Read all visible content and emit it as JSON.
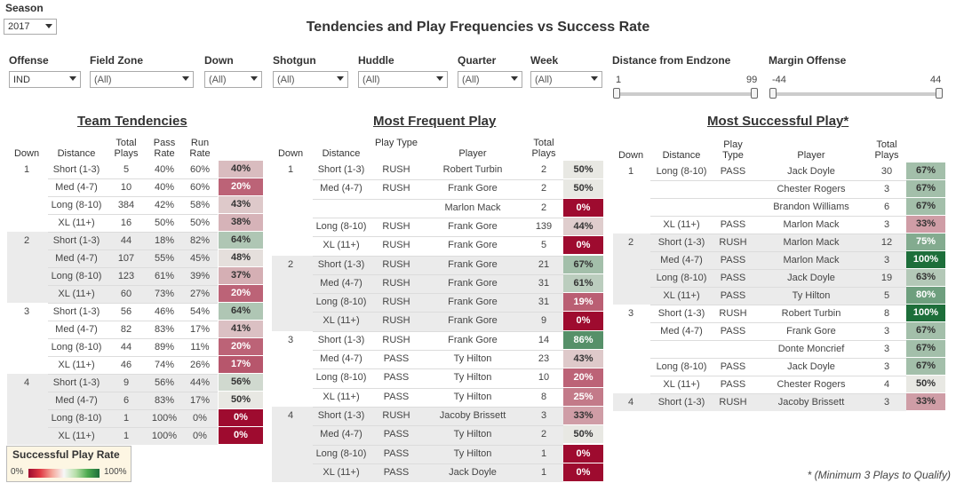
{
  "season": {
    "label": "Season",
    "value": "2017"
  },
  "title": "Tendencies and Play Frequencies vs Success Rate",
  "filters": [
    {
      "label": "Offense",
      "value": "IND"
    },
    {
      "label": "Field Zone",
      "value": "(All)"
    },
    {
      "label": "Down",
      "value": "(All)"
    },
    {
      "label": "Shotgun",
      "value": "(All)"
    },
    {
      "label": "Huddle",
      "value": "(All)"
    },
    {
      "label": "Quarter",
      "value": "(All)"
    },
    {
      "label": "Week",
      "value": "(All)"
    }
  ],
  "sliders": [
    {
      "label": "Distance from Endzone",
      "min": "1",
      "max": "99"
    },
    {
      "label": "Margin Offense",
      "min": "-44",
      "max": "44"
    }
  ],
  "colors": {
    "low": "#9e0b2f",
    "mid": "#e8e8e3",
    "high": "#1d6e3a"
  },
  "team_tendencies": {
    "title": "Team Tendencies",
    "headers": {
      "down": "Down",
      "distance": "Distance",
      "plays": "Total Plays",
      "pass": "Pass Rate",
      "run": "Run Rate"
    },
    "rows": [
      {
        "down": "1",
        "distance": "Short (1-3)",
        "plays": "5",
        "pass": "40%",
        "run": "60%",
        "rate": "40%",
        "v": 40
      },
      {
        "down": "",
        "distance": "Med (4-7)",
        "plays": "10",
        "pass": "40%",
        "run": "60%",
        "rate": "20%",
        "v": 20
      },
      {
        "down": "",
        "distance": "Long (8-10)",
        "plays": "384",
        "pass": "42%",
        "run": "58%",
        "rate": "43%",
        "v": 43
      },
      {
        "down": "",
        "distance": "XL (11+)",
        "plays": "16",
        "pass": "50%",
        "run": "50%",
        "rate": "38%",
        "v": 38
      },
      {
        "down": "2",
        "distance": "Short (1-3)",
        "plays": "44",
        "pass": "18%",
        "run": "82%",
        "rate": "64%",
        "v": 64
      },
      {
        "down": "",
        "distance": "Med (4-7)",
        "plays": "107",
        "pass": "55%",
        "run": "45%",
        "rate": "48%",
        "v": 48
      },
      {
        "down": "",
        "distance": "Long (8-10)",
        "plays": "123",
        "pass": "61%",
        "run": "39%",
        "rate": "37%",
        "v": 37
      },
      {
        "down": "",
        "distance": "XL (11+)",
        "plays": "60",
        "pass": "73%",
        "run": "27%",
        "rate": "20%",
        "v": 20
      },
      {
        "down": "3",
        "distance": "Short (1-3)",
        "plays": "56",
        "pass": "46%",
        "run": "54%",
        "rate": "64%",
        "v": 64
      },
      {
        "down": "",
        "distance": "Med (4-7)",
        "plays": "82",
        "pass": "83%",
        "run": "17%",
        "rate": "41%",
        "v": 41
      },
      {
        "down": "",
        "distance": "Long (8-10)",
        "plays": "44",
        "pass": "89%",
        "run": "11%",
        "rate": "20%",
        "v": 20
      },
      {
        "down": "",
        "distance": "XL (11+)",
        "plays": "46",
        "pass": "74%",
        "run": "26%",
        "rate": "17%",
        "v": 17
      },
      {
        "down": "4",
        "distance": "Short (1-3)",
        "plays": "9",
        "pass": "56%",
        "run": "44%",
        "rate": "56%",
        "v": 56
      },
      {
        "down": "",
        "distance": "Med (4-7)",
        "plays": "6",
        "pass": "83%",
        "run": "17%",
        "rate": "50%",
        "v": 50
      },
      {
        "down": "",
        "distance": "Long (8-10)",
        "plays": "1",
        "pass": "100%",
        "run": "0%",
        "rate": "0%",
        "v": 0
      },
      {
        "down": "",
        "distance": "XL (11+)",
        "plays": "1",
        "pass": "100%",
        "run": "0%",
        "rate": "0%",
        "v": 0
      }
    ]
  },
  "most_frequent": {
    "title": "Most Frequent Play",
    "headers": {
      "down": "Down",
      "distance": "Distance",
      "type": "Play Type",
      "player": "Player",
      "plays": "Total Plays"
    },
    "rows": [
      {
        "down": "1",
        "distance": "Short (1-3)",
        "type": "RUSH",
        "player": "Robert Turbin",
        "plays": "2",
        "rate": "50%",
        "v": 50
      },
      {
        "down": "",
        "distance": "Med (4-7)",
        "type": "RUSH",
        "player": "Frank Gore",
        "plays": "2",
        "rate": "50%",
        "v": 50
      },
      {
        "down": "",
        "distance": "",
        "type": "",
        "player": "Marlon Mack",
        "plays": "2",
        "rate": "0%",
        "v": 0
      },
      {
        "down": "",
        "distance": "Long (8-10)",
        "type": "RUSH",
        "player": "Frank Gore",
        "plays": "139",
        "rate": "44%",
        "v": 44
      },
      {
        "down": "",
        "distance": "XL (11+)",
        "type": "RUSH",
        "player": "Frank Gore",
        "plays": "5",
        "rate": "0%",
        "v": 0
      },
      {
        "down": "2",
        "distance": "Short (1-3)",
        "type": "RUSH",
        "player": "Frank Gore",
        "plays": "21",
        "rate": "67%",
        "v": 67
      },
      {
        "down": "",
        "distance": "Med (4-7)",
        "type": "RUSH",
        "player": "Frank Gore",
        "plays": "31",
        "rate": "61%",
        "v": 61
      },
      {
        "down": "",
        "distance": "Long (8-10)",
        "type": "RUSH",
        "player": "Frank Gore",
        "plays": "31",
        "rate": "19%",
        "v": 19
      },
      {
        "down": "",
        "distance": "XL (11+)",
        "type": "RUSH",
        "player": "Frank Gore",
        "plays": "9",
        "rate": "0%",
        "v": 0
      },
      {
        "down": "3",
        "distance": "Short (1-3)",
        "type": "RUSH",
        "player": "Frank Gore",
        "plays": "14",
        "rate": "86%",
        "v": 86
      },
      {
        "down": "",
        "distance": "Med (4-7)",
        "type": "PASS",
        "player": "Ty Hilton",
        "plays": "23",
        "rate": "43%",
        "v": 43
      },
      {
        "down": "",
        "distance": "Long (8-10)",
        "type": "PASS",
        "player": "Ty Hilton",
        "plays": "10",
        "rate": "20%",
        "v": 20
      },
      {
        "down": "",
        "distance": "XL (11+)",
        "type": "PASS",
        "player": "Ty Hilton",
        "plays": "8",
        "rate": "25%",
        "v": 25
      },
      {
        "down": "4",
        "distance": "Short (1-3)",
        "type": "RUSH",
        "player": "Jacoby Brissett",
        "plays": "3",
        "rate": "33%",
        "v": 33
      },
      {
        "down": "",
        "distance": "Med (4-7)",
        "type": "PASS",
        "player": "Ty Hilton",
        "plays": "2",
        "rate": "50%",
        "v": 50
      },
      {
        "down": "",
        "distance": "Long (8-10)",
        "type": "PASS",
        "player": "Ty Hilton",
        "plays": "1",
        "rate": "0%",
        "v": 0
      },
      {
        "down": "",
        "distance": "XL (11+)",
        "type": "PASS",
        "player": "Jack Doyle",
        "plays": "1",
        "rate": "0%",
        "v": 0
      }
    ]
  },
  "most_successful": {
    "title": "Most Successful Play*",
    "headers": {
      "down": "Down",
      "distance": "Distance",
      "type": "Play Type",
      "player": "Player",
      "plays": "Total Plays"
    },
    "rows": [
      {
        "down": "1",
        "distance": "Long (8-10)",
        "type": "PASS",
        "player": "Jack Doyle",
        "plays": "30",
        "rate": "67%",
        "v": 67
      },
      {
        "down": "",
        "distance": "",
        "type": "",
        "player": "Chester Rogers",
        "plays": "3",
        "rate": "67%",
        "v": 67
      },
      {
        "down": "",
        "distance": "",
        "type": "",
        "player": "Brandon Williams",
        "plays": "6",
        "rate": "67%",
        "v": 67
      },
      {
        "down": "",
        "distance": "XL (11+)",
        "type": "PASS",
        "player": "Marlon Mack",
        "plays": "3",
        "rate": "33%",
        "v": 33
      },
      {
        "down": "2",
        "distance": "Short (1-3)",
        "type": "RUSH",
        "player": "Marlon Mack",
        "plays": "12",
        "rate": "75%",
        "v": 75
      },
      {
        "down": "",
        "distance": "Med (4-7)",
        "type": "PASS",
        "player": "Marlon Mack",
        "plays": "3",
        "rate": "100%",
        "v": 100
      },
      {
        "down": "",
        "distance": "Long (8-10)",
        "type": "PASS",
        "player": "Jack Doyle",
        "plays": "19",
        "rate": "63%",
        "v": 63
      },
      {
        "down": "",
        "distance": "XL (11+)",
        "type": "PASS",
        "player": "Ty Hilton",
        "plays": "5",
        "rate": "80%",
        "v": 80
      },
      {
        "down": "3",
        "distance": "Short (1-3)",
        "type": "RUSH",
        "player": "Robert Turbin",
        "plays": "8",
        "rate": "100%",
        "v": 100
      },
      {
        "down": "",
        "distance": "Med (4-7)",
        "type": "PASS",
        "player": "Frank Gore",
        "plays": "3",
        "rate": "67%",
        "v": 67
      },
      {
        "down": "",
        "distance": "",
        "type": "",
        "player": "Donte Moncrief",
        "plays": "3",
        "rate": "67%",
        "v": 67
      },
      {
        "down": "",
        "distance": "Long (8-10)",
        "type": "PASS",
        "player": "Jack Doyle",
        "plays": "3",
        "rate": "67%",
        "v": 67
      },
      {
        "down": "",
        "distance": "XL (11+)",
        "type": "PASS",
        "player": "Chester Rogers",
        "plays": "4",
        "rate": "50%",
        "v": 50
      },
      {
        "down": "4",
        "distance": "Short (1-3)",
        "type": "RUSH",
        "player": "Jacoby Brissett",
        "plays": "3",
        "rate": "33%",
        "v": 33
      }
    ]
  },
  "legend": {
    "title": "Successful Play Rate",
    "min": "0%",
    "max": "100%"
  },
  "footnote": "* (Minimum 3 Plays to Qualify)"
}
